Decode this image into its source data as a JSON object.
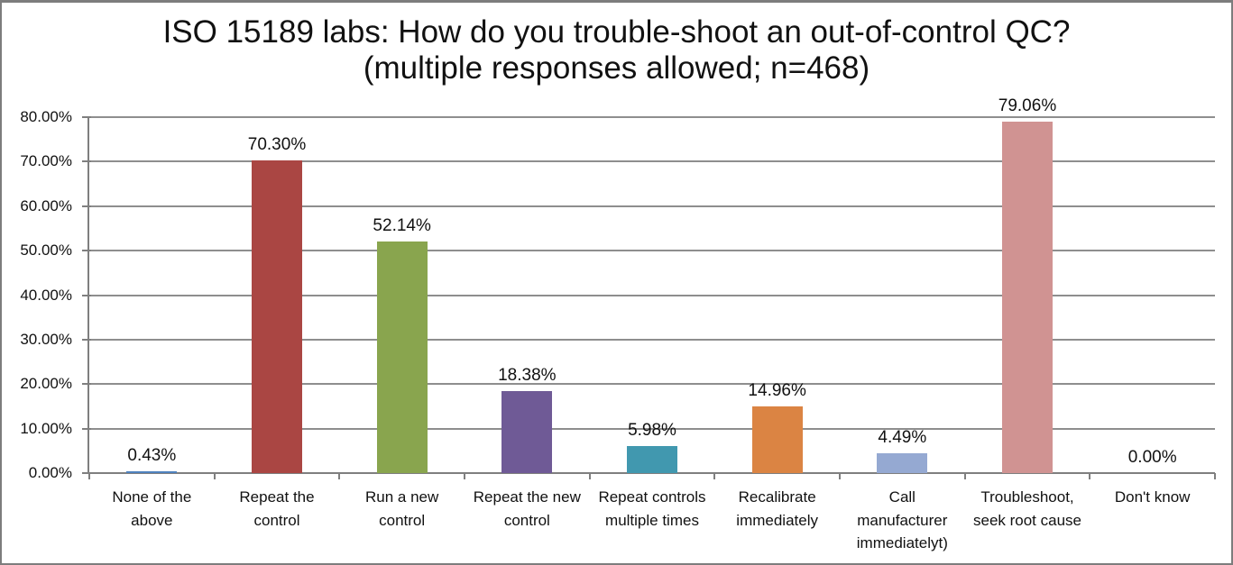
{
  "frame": {
    "background_color": "#ffffff",
    "border_color": "#7d7d7d"
  },
  "chart_data": {
    "type": "bar",
    "title": "ISO 15189 labs: How do you trouble-shoot an out-of-control QC?\n(multiple responses allowed; n=468)",
    "n": 468,
    "categories": [
      "None of the above",
      "Repeat the control",
      "Run a new control",
      "Repeat the new control",
      "Repeat controls multiple times",
      "Recalibrate immediately",
      "Call manufacturer immediatelyt)",
      "Troubleshoot, seek root cause",
      "Don't know"
    ],
    "values": [
      0.43,
      70.3,
      52.14,
      18.38,
      5.98,
      14.96,
      4.49,
      79.06,
      0.0
    ],
    "value_labels": [
      "0.43%",
      "70.30%",
      "52.14%",
      "18.38%",
      "5.98%",
      "14.96%",
      "4.49%",
      "79.06%",
      "0.00%"
    ],
    "bar_colors": [
      "#4F81BD",
      "#AA4643",
      "#89A54E",
      "#6F5A96",
      "#4198AF",
      "#DB8443",
      "#95A9D2",
      "#D09392",
      "#B9CD96"
    ],
    "xlabel": "",
    "ylabel": "",
    "ylim": [
      0,
      80
    ],
    "y_ticks": [
      {
        "value": 0,
        "label": "0.00%"
      },
      {
        "value": 10,
        "label": "10.00%"
      },
      {
        "value": 20,
        "label": "20.00%"
      },
      {
        "value": 30,
        "label": "30.00%"
      },
      {
        "value": 40,
        "label": "40.00%"
      },
      {
        "value": 50,
        "label": "50.00%"
      },
      {
        "value": 60,
        "label": "60.00%"
      },
      {
        "value": 70,
        "label": "70.00%"
      },
      {
        "value": 80,
        "label": "80.00%"
      }
    ],
    "grid": true,
    "legend": "none",
    "gridline_color": "#8e8e8e",
    "axis_color": "#7f7f7f",
    "text_color": "#111111"
  }
}
